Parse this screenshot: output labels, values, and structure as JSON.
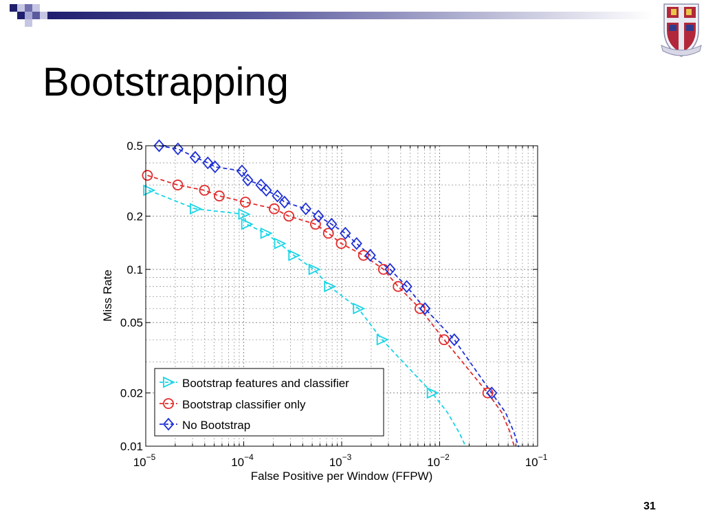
{
  "slide": {
    "title": "Bootstrapping",
    "page_number": "31"
  },
  "colors": {
    "series_1": "#17d5e6",
    "series_2": "#e22b2b",
    "series_3": "#1d2fd6",
    "header_dark": "#1f1f6e",
    "header_accent": "#a7a7d6"
  },
  "icons": [
    "college-crest"
  ],
  "chart_data": {
    "type": "line",
    "title": "",
    "xlabel": "False Positive per Window (FFPW)",
    "ylabel": "Miss Rate",
    "x_scale": "log",
    "y_scale": "log",
    "xlim": [
      1e-05,
      0.1
    ],
    "ylim": [
      0.01,
      0.5
    ],
    "grid": true,
    "legend_position": "bottom-left",
    "x_ticks": [
      {
        "value": 1e-05,
        "base": "10",
        "exp": "−5"
      },
      {
        "value": 0.0001,
        "base": "10",
        "exp": "−4"
      },
      {
        "value": 0.001,
        "base": "10",
        "exp": "−3"
      },
      {
        "value": 0.01,
        "base": "10",
        "exp": "−2"
      },
      {
        "value": 0.1,
        "base": "10",
        "exp": "−1"
      }
    ],
    "y_ticks": [
      {
        "value": 0.5,
        "label": "0.5"
      },
      {
        "value": 0.2,
        "label": "0.2"
      },
      {
        "value": 0.1,
        "label": "0.1"
      },
      {
        "value": 0.05,
        "label": "0.05"
      },
      {
        "value": 0.02,
        "label": "0.02"
      },
      {
        "value": 0.01,
        "label": "0.01"
      }
    ],
    "series": [
      {
        "name": "Bootstrap features and classifier",
        "marker": "triangle-right",
        "color": "#17d5e6",
        "x": [
          1.07e-05,
          3.2e-05,
          0.0001,
          0.000107,
          0.000168,
          0.000232,
          0.000324,
          0.000521,
          0.00075,
          0.00148,
          0.00258,
          0.00839
        ],
        "y": [
          0.28,
          0.22,
          0.205,
          0.18,
          0.16,
          0.14,
          0.12,
          0.1,
          0.08,
          0.06,
          0.04,
          0.02
        ],
        "tail_x": [
          0.00839,
          0.012,
          0.016,
          0.0185
        ],
        "tail_y": [
          0.02,
          0.0155,
          0.0118,
          0.0099
        ]
      },
      {
        "name": "Bootstrap classifier only",
        "marker": "circle",
        "color": "#e22b2b",
        "x": [
          1.04e-05,
          2.12e-05,
          3.98e-05,
          5.63e-05,
          0.000104,
          0.000205,
          0.000289,
          0.00054,
          0.000732,
          0.00099,
          0.00167,
          0.00267,
          0.00377,
          0.0063,
          0.0111,
          0.031
        ],
        "y": [
          0.34,
          0.3,
          0.28,
          0.26,
          0.24,
          0.22,
          0.2,
          0.18,
          0.16,
          0.14,
          0.12,
          0.1,
          0.08,
          0.06,
          0.04,
          0.02
        ],
        "tail_x": [
          0.031,
          0.043,
          0.052,
          0.058
        ],
        "tail_y": [
          0.02,
          0.0155,
          0.0121,
          0.0099
        ]
      },
      {
        "name": "No Bootstrap",
        "marker": "diamond",
        "color": "#1d2fd6",
        "x": [
          1.37e-05,
          2.13e-05,
          3.2e-05,
          4.3e-05,
          5.1e-05,
          9.6e-05,
          0.00011,
          0.00015,
          0.00017,
          0.000221,
          0.000261,
          0.00043,
          0.000579,
          0.000789,
          0.00109,
          0.00142,
          0.00196,
          0.00312,
          0.00461,
          0.00708,
          0.0141,
          0.034
        ],
        "y": [
          0.5,
          0.48,
          0.43,
          0.4,
          0.38,
          0.36,
          0.32,
          0.3,
          0.28,
          0.26,
          0.24,
          0.22,
          0.2,
          0.18,
          0.16,
          0.14,
          0.12,
          0.1,
          0.08,
          0.06,
          0.04,
          0.02
        ],
        "tail_x": [
          0.034,
          0.047,
          0.057,
          0.064
        ],
        "tail_y": [
          0.02,
          0.0155,
          0.0121,
          0.0099
        ]
      }
    ]
  }
}
